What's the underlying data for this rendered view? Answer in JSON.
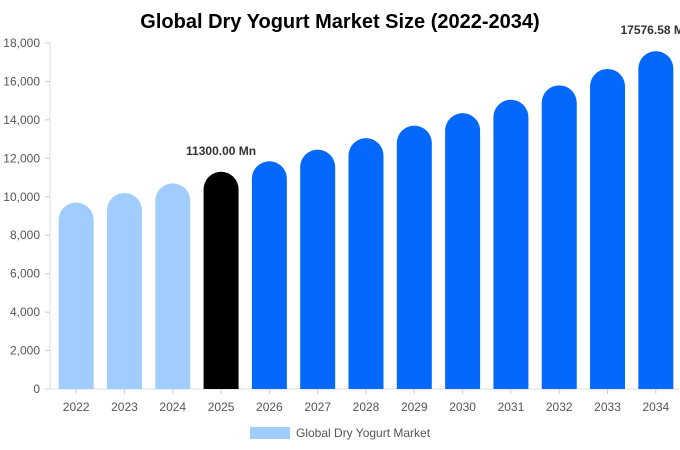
{
  "chart_data": {
    "type": "bar",
    "title": "Global Dry Yogurt Market Size (2022-2034)",
    "xlabel": "",
    "ylabel": "",
    "categories": [
      "2022",
      "2023",
      "2024",
      "2025",
      "2026",
      "2027",
      "2028",
      "2029",
      "2030",
      "2031",
      "2032",
      "2033",
      "2034"
    ],
    "series": [
      {
        "name": "Global Dry Yogurt Market",
        "values": [
          9700,
          10200,
          10700,
          11300,
          11850,
          12450,
          13050,
          13700,
          14350,
          15050,
          15800,
          16650,
          17576.58
        ]
      }
    ],
    "bar_colors": [
      "#a0cdfe",
      "#a0cdfe",
      "#a0cdfe",
      "#000000",
      "#0468fd",
      "#0468fd",
      "#0468fd",
      "#0468fd",
      "#0468fd",
      "#0468fd",
      "#0468fd",
      "#0468fd",
      "#0468fd"
    ],
    "legend_color": "#a0cdfe",
    "ylim": [
      0,
      18000
    ],
    "yticks": [
      "0",
      "2,000",
      "4,000",
      "6,000",
      "8,000",
      "10,000",
      "12,000",
      "14,000",
      "16,000",
      "18,000"
    ],
    "ytick_values": [
      0,
      2000,
      4000,
      6000,
      8000,
      10000,
      12000,
      14000,
      16000,
      18000
    ],
    "annotations": [
      {
        "category": "2025",
        "text": "11300.00 Mn"
      },
      {
        "category": "2034",
        "text": "17576.58 Mn"
      }
    ],
    "grid": false,
    "legend_position": "bottom"
  }
}
